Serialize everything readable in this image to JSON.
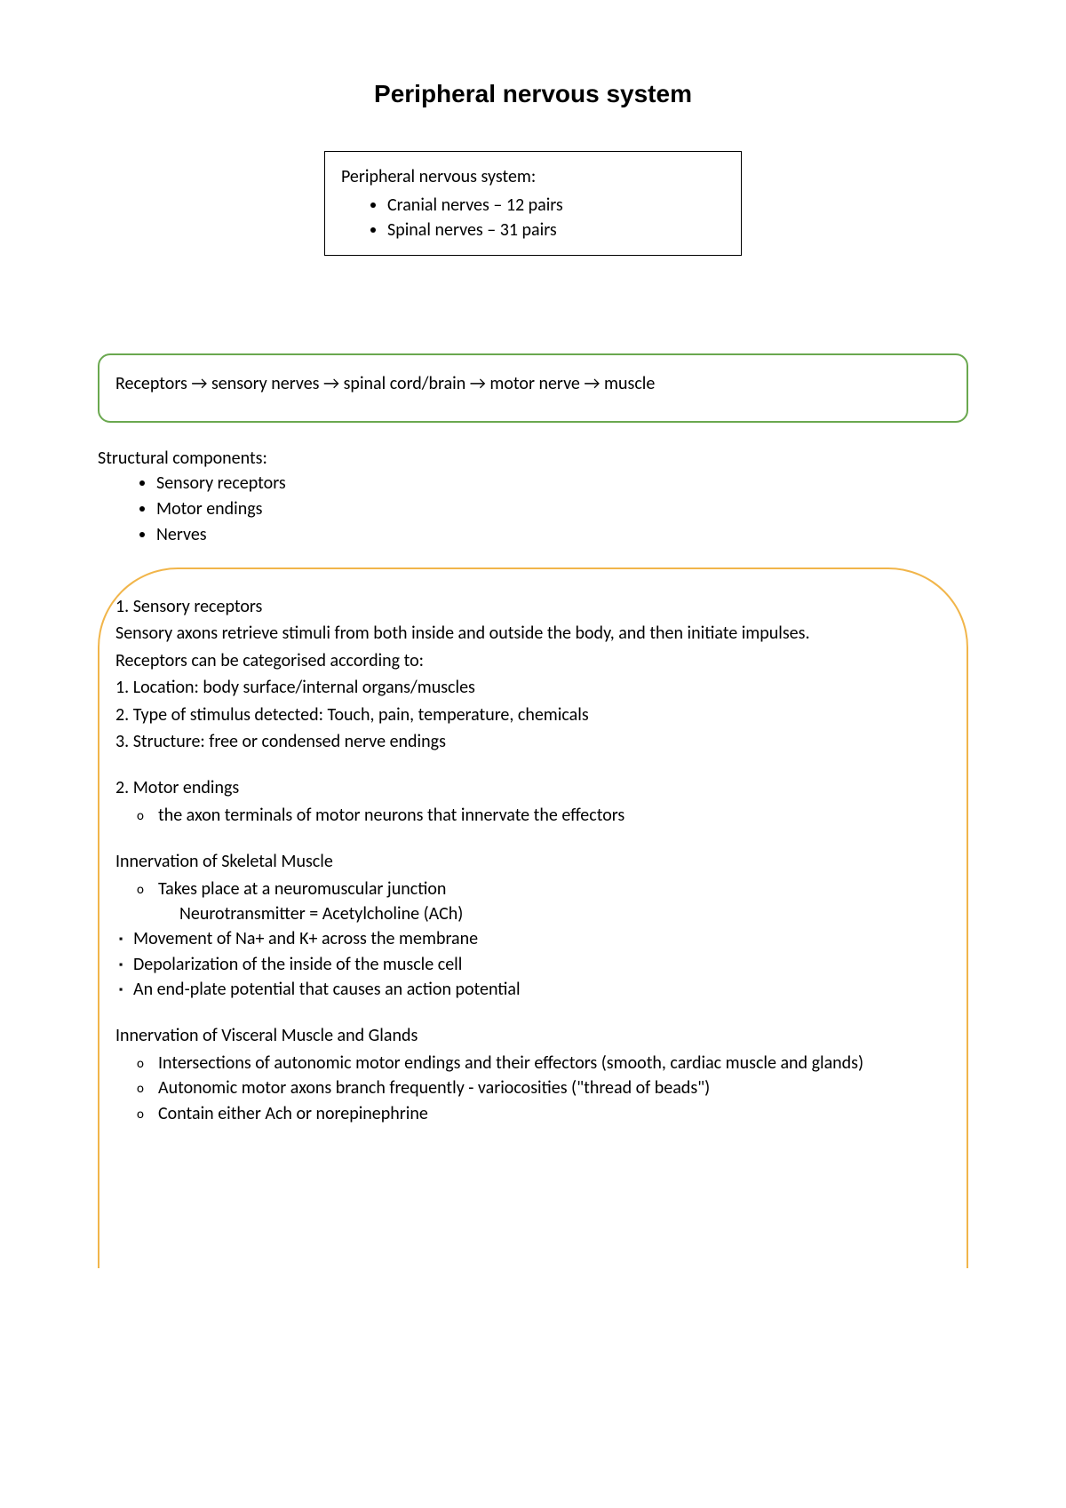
{
  "title": "Peripheral nervous system",
  "pns_box": {
    "heading": "Peripheral nervous system:",
    "items": [
      "Cranial nerves – 12 pairs",
      "Spinal nerves – 31 pairs"
    ]
  },
  "flow": "Receptors → sensory nerves → spinal cord/brain → motor nerve → muscle",
  "structural": {
    "heading": "Structural components:",
    "items": [
      "Sensory receptors",
      "Motor endings",
      "Nerves"
    ]
  },
  "sensory": {
    "heading": "1. Sensory receptors",
    "line1": "Sensory axons retrieve stimuli from both inside and outside the body, and then initiate impulses.",
    "line2": "Receptors can be categorised according to:",
    "cat1": "1. Location: body surface/internal organs/muscles",
    "cat2": "2. Type of stimulus detected: Touch, pain, temperature, chemicals",
    "cat3": "3. Structure: free or condensed nerve endings"
  },
  "motor": {
    "heading": "2. Motor endings",
    "item": "the axon terminals of motor neurons that innervate the effectors"
  },
  "skeletal": {
    "heading": "Innervation of Skeletal Muscle",
    "o1": "Takes place at a neuromuscular junction",
    "o1b": "Neurotransmitter = Acetylcholine (ACh)",
    "s1": "Movement of Na+ and K+ across the membrane",
    "s2": "Depolarization of the inside of the muscle cell",
    "s3": "An end-plate potential that causes an action potential"
  },
  "visceral": {
    "heading": "Innervation of Visceral Muscle and Glands",
    "o1": "Intersections of autonomic motor endings and their effectors (smooth, cardiac muscle and glands)",
    "o2": "Autonomic motor axons branch frequently - variocosities (\"thread of beads\")",
    "o3": "Contain either Ach or norepinephrine"
  },
  "colors": {
    "green_border": "#6aa84f",
    "yellow_border": "#f1b54a",
    "text": "#000000",
    "background": "#ffffff"
  }
}
